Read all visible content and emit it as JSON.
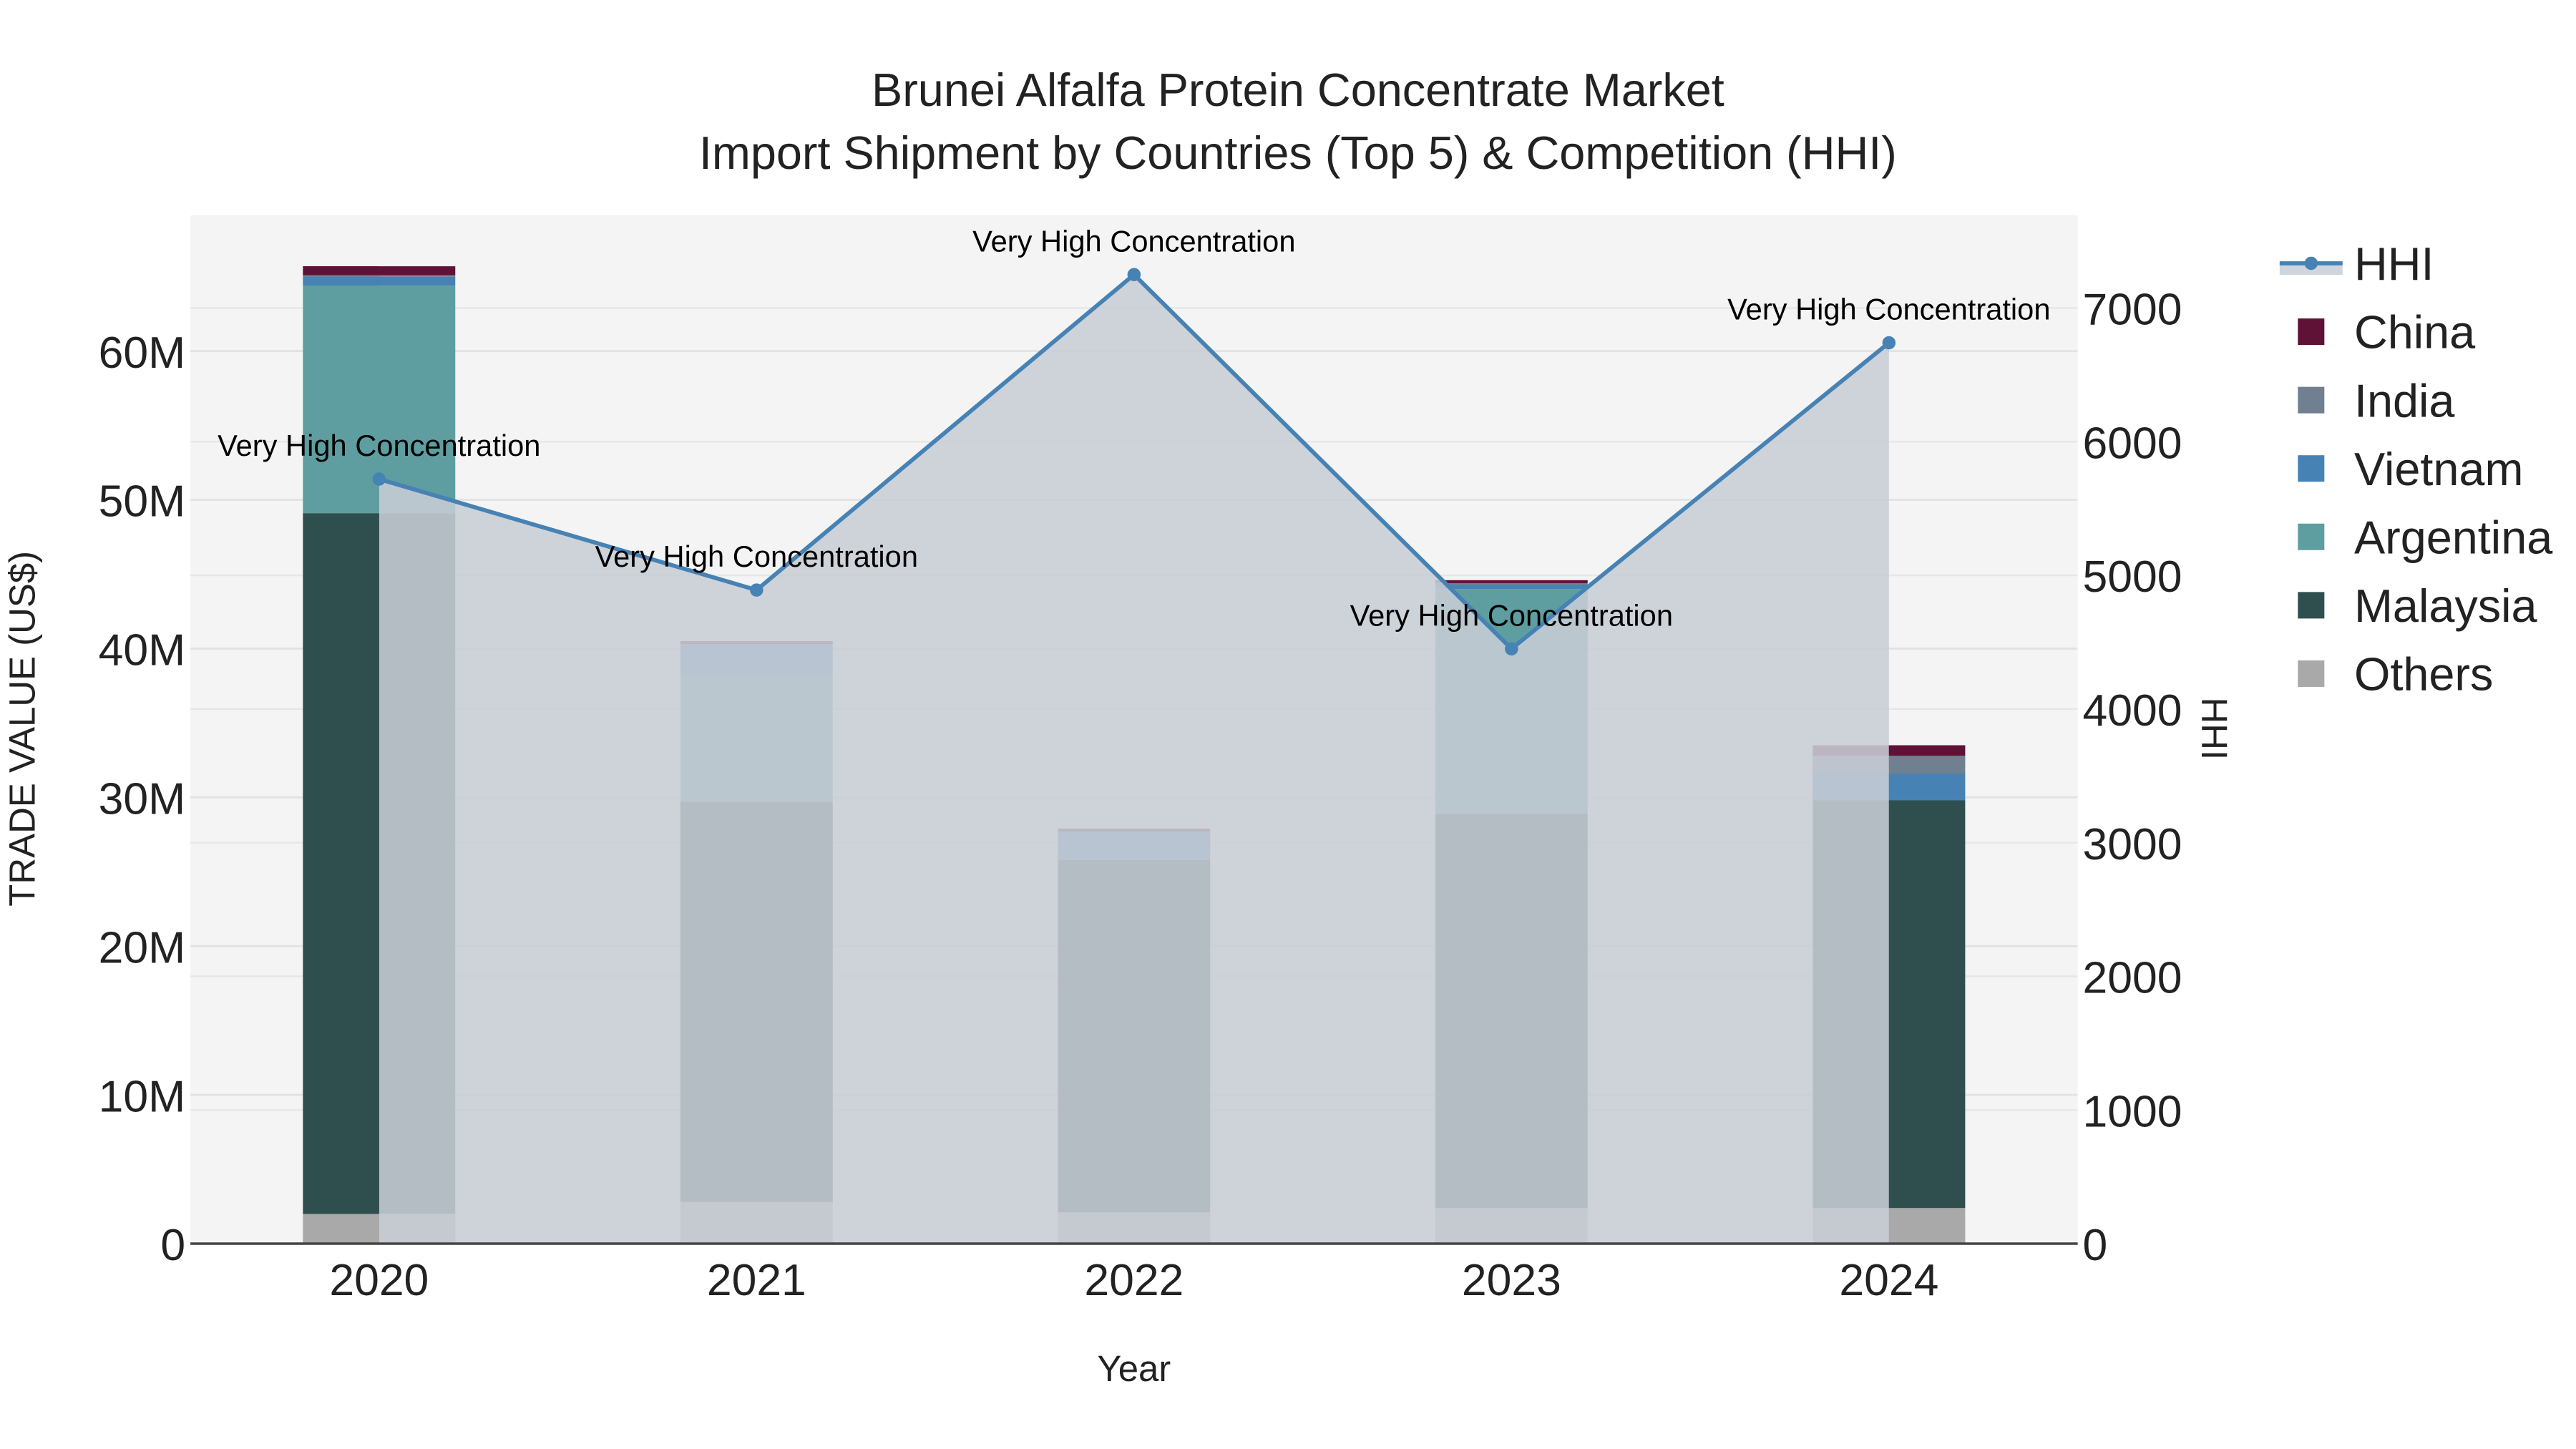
{
  "title": {
    "line1": "Brunei Alfalfa Protein Concentrate Market",
    "line2": "Import Shipment by Countries (Top 5) & Competition (HHI)"
  },
  "axes": {
    "x_title": "Year",
    "y_left_title": "TRADE VALUE (US$)",
    "y_right_title": "HHI",
    "x_ticks": [
      "2020",
      "2021",
      "2022",
      "2023",
      "2024"
    ],
    "y_left_ticks": [
      "0",
      "10M",
      "20M",
      "30M",
      "40M",
      "50M",
      "60M"
    ],
    "y_right_ticks": [
      "0",
      "1000",
      "2000",
      "3000",
      "4000",
      "5000",
      "6000",
      "7000"
    ]
  },
  "legend": {
    "items": [
      {
        "label": "HHI",
        "color": "#4682b4",
        "kind": "line"
      },
      {
        "label": "China",
        "color": "#5f1136",
        "kind": "box"
      },
      {
        "label": "India",
        "color": "#708090",
        "kind": "box"
      },
      {
        "label": "Vietnam",
        "color": "#4682b4",
        "kind": "box"
      },
      {
        "label": "Argentina",
        "color": "#5f9ea0",
        "kind": "box"
      },
      {
        "label": "Malaysia",
        "color": "#2f4f4f",
        "kind": "box"
      },
      {
        "label": "Others",
        "color": "#a9a9a9",
        "kind": "box"
      }
    ]
  },
  "annotations": [
    {
      "year": "2020",
      "text": "Very High Concentration"
    },
    {
      "year": "2021",
      "text": "Very High Concentration"
    },
    {
      "year": "2022",
      "text": "Very High Concentration"
    },
    {
      "year": "2023",
      "text": "Very High Concentration"
    },
    {
      "year": "2024",
      "text": "Very High Concentration"
    }
  ],
  "chart_data": {
    "type": "bar",
    "subtype": "stacked bar with line overlay (secondary axis) and filled area",
    "title": "Brunei Alfalfa Protein Concentrate Market — Import Shipment by Countries (Top 5) & Competition (HHI)",
    "xlabel": "Year",
    "ylabel": "TRADE VALUE (US$)",
    "y2label": "HHI",
    "categories": [
      "2020",
      "2021",
      "2022",
      "2023",
      "2024"
    ],
    "ylim": [
      0,
      68000000
    ],
    "y2lim": [
      0,
      7650
    ],
    "grid": true,
    "legend_position": "right",
    "series": [
      {
        "name": "Others",
        "color": "#a9a9a9",
        "values": [
          2000000,
          2800000,
          2100000,
          2400000,
          2400000
        ]
      },
      {
        "name": "Malaysia",
        "color": "#2f4f4f",
        "values": [
          47100000,
          26900000,
          23700000,
          26500000,
          27400000
        ]
      },
      {
        "name": "Argentina",
        "color": "#5f9ea0",
        "values": [
          15300000,
          8500000,
          0,
          15100000,
          0
        ]
      },
      {
        "name": "Vietnam",
        "color": "#4682b4",
        "values": [
          600000,
          2100000,
          1900000,
          300000,
          1800000
        ]
      },
      {
        "name": "India",
        "color": "#708090",
        "values": [
          100000,
          0,
          0,
          100000,
          1200000
        ]
      },
      {
        "name": "China",
        "color": "#5f1136",
        "values": [
          600000,
          200000,
          200000,
          200000,
          700000
        ]
      }
    ],
    "line_series": {
      "name": "HHI",
      "axis": "right",
      "color": "#4682b4",
      "fill": "#c8cdd5",
      "values": [
        5720,
        4890,
        7250,
        4450,
        6740
      ],
      "labels": [
        "Very High Concentration",
        "Very High Concentration",
        "Very High Concentration",
        "Very High Concentration",
        "Very High Concentration"
      ]
    }
  }
}
